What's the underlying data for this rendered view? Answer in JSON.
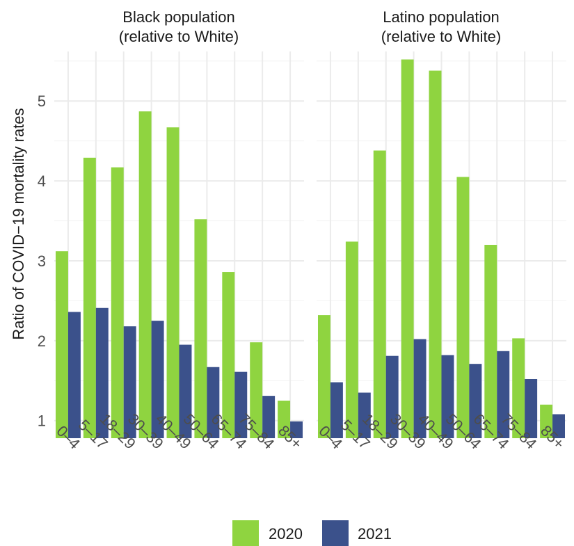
{
  "chart_data": {
    "type": "bar",
    "ylabel": "Ratio of COVID−19 mortality rates",
    "ylim": [
      0.78,
      5.62
    ],
    "yticks": [
      1,
      2,
      3,
      4,
      5
    ],
    "grid": true,
    "legend_position": "bottom",
    "series_names": [
      "2020",
      "2021"
    ],
    "colors": {
      "2020": "#8fd440",
      "2021": "#3b518b"
    },
    "panels": [
      {
        "title_line1": "Black population",
        "title_line2": "(relative to White)",
        "categories": [
          "0–4",
          "5–17",
          "18–29",
          "30–39",
          "40–49",
          "50–64",
          "65–74",
          "75–84",
          "85+"
        ],
        "series": [
          {
            "name": "2020",
            "values": [
              3.12,
              4.29,
              4.17,
              4.87,
              4.67,
              3.52,
              2.86,
              1.98,
              1.25
            ]
          },
          {
            "name": "2021",
            "values": [
              2.36,
              2.41,
              2.18,
              2.25,
              1.95,
              1.67,
              1.61,
              1.31,
              0.99
            ]
          }
        ]
      },
      {
        "title_line1": "Latino population",
        "title_line2": "(relative to White)",
        "categories": [
          "0–4",
          "5–17",
          "18–29",
          "30–39",
          "40–49",
          "50–64",
          "65–74",
          "75–84",
          "85+"
        ],
        "series": [
          {
            "name": "2020",
            "values": [
              2.32,
              3.24,
              4.38,
              5.52,
              5.38,
              4.05,
              3.2,
              2.03,
              1.2
            ]
          },
          {
            "name": "2021",
            "values": [
              1.48,
              1.35,
              1.81,
              2.02,
              1.82,
              1.71,
              1.87,
              1.52,
              1.08
            ]
          }
        ]
      }
    ]
  }
}
